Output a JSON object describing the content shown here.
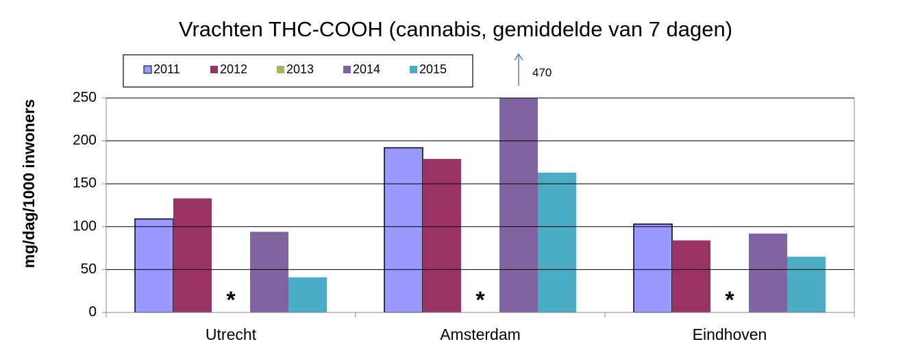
{
  "chart_data": {
    "type": "bar",
    "title": "Vrachten THC-COOH (cannabis, gemiddelde van 7 dagen)",
    "y_label": "mg/dag/1000 inwoners",
    "categories": [
      "Utrecht",
      "Amsterdam",
      "Eindhoven"
    ],
    "series": [
      {
        "name": "2011",
        "color": "#9999ff",
        "border": "#000000",
        "values": [
          109,
          192,
          103
        ]
      },
      {
        "name": "2012",
        "color": "#993366",
        "values": [
          133,
          179,
          84
        ]
      },
      {
        "name": "2013",
        "color": "#9bbb59",
        "values": [
          null,
          null,
          null
        ],
        "value_labels": [
          "*",
          "*",
          "*"
        ]
      },
      {
        "name": "2014",
        "color": "#8064a2",
        "values": [
          94,
          470,
          92
        ],
        "value_labels": [
          null,
          "470",
          null
        ]
      },
      {
        "name": "2015",
        "color": "#4bacc6",
        "values": [
          41,
          163,
          65
        ]
      }
    ],
    "ylim": [
      0,
      250
    ],
    "yticks": [
      0,
      50,
      100,
      150,
      200,
      250
    ],
    "grid": true,
    "legend": "top"
  }
}
